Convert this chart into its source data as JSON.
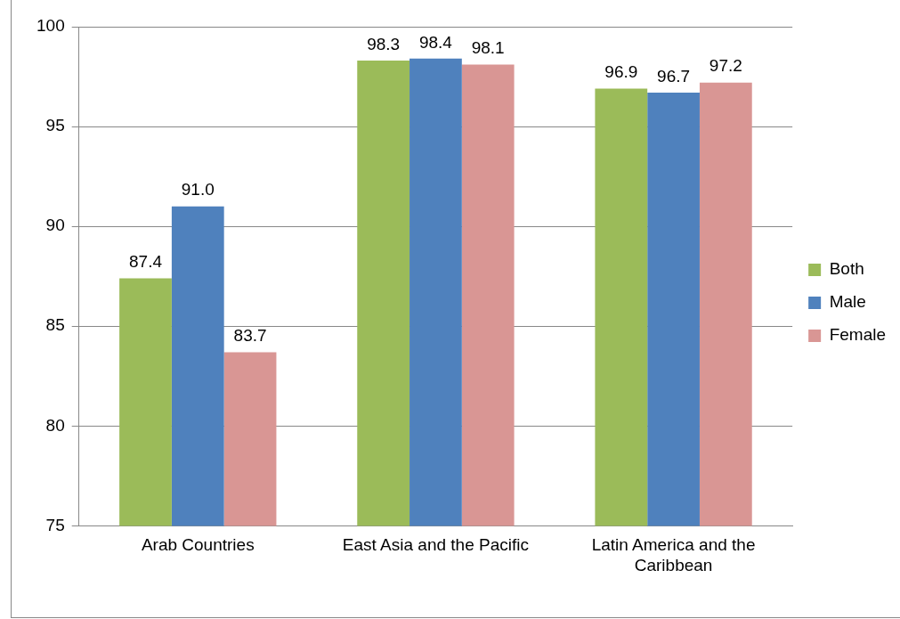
{
  "chart_data": {
    "type": "bar",
    "categories": [
      "Arab Countries",
      "East Asia and the Pacific",
      "Latin America and the Caribbean"
    ],
    "series": [
      {
        "name": "Both",
        "color": "#9bbb59",
        "values": [
          87.4,
          98.3,
          96.9
        ],
        "value_labels": [
          "87.4",
          "98.3",
          "96.9"
        ]
      },
      {
        "name": "Male",
        "color": "#4f81bd",
        "values": [
          91.0,
          98.4,
          96.7
        ],
        "value_labels": [
          "91.0",
          "98.4",
          "96.7"
        ]
      },
      {
        "name": "Female",
        "color": "#d99694",
        "values": [
          83.7,
          98.1,
          97.2
        ],
        "value_labels": [
          "83.7",
          "98.1",
          "97.2"
        ]
      }
    ],
    "ylim": [
      75,
      100
    ],
    "yticks": [
      75,
      80,
      85,
      90,
      95,
      100
    ],
    "grid": "y",
    "legend": "right"
  }
}
